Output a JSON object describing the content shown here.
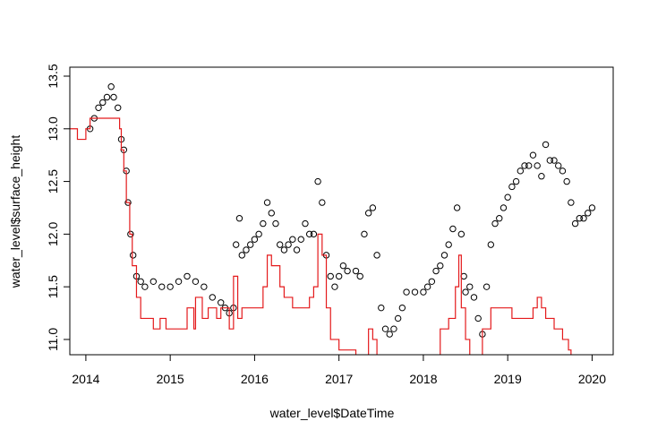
{
  "chart_data": {
    "type": "scatter",
    "x_label": "water_level$DateTime",
    "y_label": "water_level$surface_height",
    "xlim": [
      2013.81,
      2020.25
    ],
    "ylim": [
      10.855,
      13.585
    ],
    "xticks": [
      2014,
      2015,
      2016,
      2017,
      2018,
      2019,
      2020
    ],
    "yticks": [
      {
        "value": 11,
        "label": "11.0"
      },
      11.5,
      {
        "value": 12,
        "label": "12.0"
      },
      12.5,
      {
        "value": 13,
        "label": "13.0"
      },
      13.5
    ],
    "series": [
      {
        "kind": "points",
        "color": "#000000",
        "x": [
          2014.05,
          2014.1,
          2014.15,
          2014.2,
          2014.25,
          2014.3,
          2014.33,
          2014.38,
          2014.42,
          2014.45,
          2014.48,
          2014.5,
          2014.53,
          2014.56,
          2014.6,
          2014.65,
          2014.7,
          2014.8,
          2014.9,
          2015.0,
          2015.1,
          2015.2,
          2015.3,
          2015.4,
          2015.5,
          2015.6,
          2015.65,
          2015.7,
          2015.75,
          2015.78,
          2015.82,
          2015.85,
          2015.9,
          2015.95,
          2016.0,
          2016.05,
          2016.1,
          2016.15,
          2016.2,
          2016.25,
          2016.3,
          2016.35,
          2016.4,
          2016.45,
          2016.5,
          2016.55,
          2016.6,
          2016.65,
          2016.7,
          2016.75,
          2016.8,
          2016.85,
          2016.9,
          2016.95,
          2017.0,
          2017.05,
          2017.1,
          2017.2,
          2017.25,
          2017.3,
          2017.35,
          2017.4,
          2017.45,
          2017.5,
          2017.55,
          2017.6,
          2017.65,
          2017.7,
          2017.75,
          2017.8,
          2017.9,
          2018.0,
          2018.05,
          2018.1,
          2018.15,
          2018.2,
          2018.25,
          2018.3,
          2018.35,
          2018.4,
          2018.45,
          2018.48,
          2018.5,
          2018.55,
          2018.6,
          2018.65,
          2018.7,
          2018.75,
          2018.8,
          2018.85,
          2018.9,
          2018.95,
          2019.0,
          2019.05,
          2019.1,
          2019.15,
          2019.2,
          2019.25,
          2019.3,
          2019.35,
          2019.4,
          2019.45,
          2019.5,
          2019.55,
          2019.6,
          2019.65,
          2019.7,
          2019.75,
          2019.8,
          2019.85,
          2019.9,
          2019.95,
          2020.0
        ],
        "values": [
          13.0,
          13.1,
          13.2,
          13.25,
          13.3,
          13.4,
          13.3,
          13.2,
          12.9,
          12.8,
          12.6,
          12.3,
          12.0,
          11.8,
          11.6,
          11.55,
          11.5,
          11.55,
          11.5,
          11.5,
          11.55,
          11.6,
          11.55,
          11.5,
          11.4,
          11.35,
          11.3,
          11.25,
          11.3,
          11.9,
          12.15,
          11.8,
          11.85,
          11.9,
          11.95,
          12.0,
          12.1,
          12.3,
          12.2,
          12.1,
          11.9,
          11.85,
          11.9,
          11.95,
          11.85,
          11.95,
          12.1,
          12.0,
          12.0,
          12.5,
          12.3,
          11.8,
          11.6,
          11.5,
          11.6,
          11.7,
          11.65,
          11.65,
          11.6,
          12.0,
          12.2,
          12.25,
          11.8,
          11.3,
          11.1,
          11.05,
          11.1,
          11.2,
          11.3,
          11.45,
          11.45,
          11.45,
          11.5,
          11.55,
          11.65,
          11.7,
          11.8,
          11.9,
          12.05,
          12.25,
          12.0,
          11.6,
          11.45,
          11.5,
          11.4,
          11.2,
          11.05,
          11.5,
          11.9,
          12.1,
          12.15,
          12.25,
          12.35,
          12.45,
          12.5,
          12.6,
          12.65,
          12.65,
          12.75,
          12.65,
          12.55,
          12.85,
          12.7,
          12.7,
          12.65,
          12.6,
          12.5,
          12.3,
          12.1,
          12.15,
          12.15,
          12.2,
          12.25
        ]
      },
      {
        "kind": "step",
        "color": "#e41a1c",
        "x": [
          2013.81,
          2013.9,
          2014.0,
          2014.05,
          2014.4,
          2014.42,
          2014.45,
          2014.48,
          2014.52,
          2014.55,
          2014.6,
          2014.65,
          2014.8,
          2014.88,
          2014.95,
          2015.2,
          2015.28,
          2015.3,
          2015.38,
          2015.45,
          2015.55,
          2015.6,
          2015.7,
          2015.75,
          2015.8,
          2015.85,
          2016.0,
          2016.1,
          2016.15,
          2016.2,
          2016.3,
          2016.35,
          2016.45,
          2016.6,
          2016.65,
          2016.7,
          2016.75,
          2016.8,
          2016.85,
          2016.9,
          2017.0,
          2017.2,
          2017.35,
          2017.4,
          2017.45,
          2018.15,
          2018.2,
          2018.3,
          2018.38,
          2018.42,
          2018.45,
          2018.5,
          2018.55,
          2018.7,
          2018.8,
          2019.05,
          2019.3,
          2019.35,
          2019.4,
          2019.45,
          2019.55,
          2019.65,
          2019.72,
          2019.75
        ],
        "values": [
          13.0,
          12.9,
          13.0,
          13.1,
          13.0,
          12.8,
          12.6,
          12.3,
          12.0,
          11.7,
          11.4,
          11.2,
          11.1,
          11.2,
          11.1,
          11.3,
          11.1,
          11.4,
          11.2,
          11.3,
          11.2,
          11.3,
          11.1,
          11.6,
          11.2,
          11.3,
          11.3,
          11.5,
          11.8,
          11.7,
          11.5,
          11.4,
          11.3,
          11.3,
          11.4,
          11.5,
          12.0,
          11.8,
          11.3,
          11.0,
          10.9,
          10.85,
          11.1,
          11.0,
          10.8,
          10.8,
          11.1,
          11.2,
          11.5,
          11.8,
          11.3,
          11.0,
          10.8,
          11.1,
          11.3,
          11.2,
          11.3,
          11.4,
          11.3,
          11.2,
          11.1,
          11.0,
          10.9,
          10.8
        ]
      }
    ]
  }
}
